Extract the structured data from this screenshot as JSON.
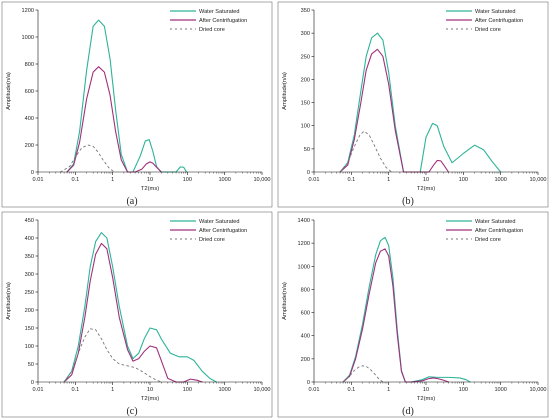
{
  "legend": {
    "water_saturated": "Water Saturated",
    "after_centrifugation": "After Centrifugation",
    "dried_core": "Dried core"
  },
  "colors": {
    "water_saturated": "#2eb399",
    "after_centrifugation": "#a0307c",
    "dried_core": "#777777"
  },
  "chart_data": [
    {
      "type": "line",
      "panel_label": "(a)",
      "ylabel": "Amplitude(n/a)",
      "xlabel": "T2(ms)",
      "xscale": "log",
      "xlim": [
        0.01,
        10000
      ],
      "ylim": [
        0,
        1200
      ],
      "xtick_labels": [
        "0.01",
        "0.1",
        "1",
        "10",
        "100",
        "1000",
        "10,000"
      ],
      "yticks": [
        0,
        200,
        400,
        600,
        800,
        1000,
        1200
      ],
      "series": [
        {
          "name": "Water Saturated",
          "x": [
            0.06,
            0.09,
            0.13,
            0.2,
            0.3,
            0.42,
            0.6,
            0.85,
            1.2,
            1.7,
            2.5,
            3.5,
            5.5,
            7.5,
            9.5,
            12,
            15,
            20,
            50,
            65,
            80,
            95
          ],
          "y": [
            0,
            60,
            300,
            750,
            1080,
            1125,
            1080,
            840,
            460,
            130,
            0,
            0,
            120,
            230,
            240,
            150,
            40,
            0,
            0,
            38,
            35,
            0
          ]
        },
        {
          "name": "After Centrifugation",
          "x": [
            0.06,
            0.09,
            0.13,
            0.2,
            0.3,
            0.42,
            0.6,
            0.85,
            1.2,
            1.7,
            2.5,
            4,
            6,
            8,
            10,
            12,
            15,
            20
          ],
          "y": [
            0,
            50,
            220,
            540,
            740,
            780,
            740,
            570,
            300,
            90,
            0,
            0,
            20,
            60,
            75,
            65,
            35,
            0
          ]
        },
        {
          "name": "Dried core",
          "x": [
            0.04,
            0.07,
            0.1,
            0.15,
            0.22,
            0.3,
            0.4,
            0.55,
            0.8,
            1.1
          ],
          "y": [
            0,
            40,
            110,
            180,
            200,
            190,
            150,
            90,
            30,
            0
          ]
        }
      ]
    },
    {
      "type": "line",
      "panel_label": "(b)",
      "ylabel": "Amplitude(n/a)",
      "xlabel": "T2(ms)",
      "xscale": "log",
      "xlim": [
        0.01,
        10000
      ],
      "ylim": [
        0,
        350
      ],
      "xtick_labels": [
        "0.01",
        "0.1",
        "1",
        "10",
        "100",
        "1000",
        "10,000"
      ],
      "yticks": [
        0,
        50,
        100,
        150,
        200,
        250,
        300,
        350
      ],
      "series": [
        {
          "name": "Water Saturated",
          "x": [
            0.05,
            0.08,
            0.12,
            0.18,
            0.25,
            0.35,
            0.5,
            0.7,
            1.0,
            1.5,
            2.5,
            3.5,
            7,
            10,
            15,
            20,
            30,
            50,
            100,
            200,
            350,
            600,
            1000
          ],
          "y": [
            0,
            20,
            80,
            175,
            250,
            290,
            300,
            285,
            215,
            100,
            0,
            0,
            0,
            75,
            105,
            100,
            55,
            20,
            40,
            58,
            48,
            22,
            0
          ]
        },
        {
          "name": "After Centrifugation",
          "x": [
            0.05,
            0.08,
            0.12,
            0.18,
            0.25,
            0.35,
            0.5,
            0.7,
            1.0,
            1.5,
            2.5,
            3.5,
            12,
            16,
            20,
            25,
            30,
            40
          ],
          "y": [
            0,
            15,
            70,
            150,
            220,
            255,
            265,
            250,
            190,
            90,
            0,
            0,
            0,
            15,
            25,
            24,
            15,
            0
          ]
        },
        {
          "name": "Dried core",
          "x": [
            0.05,
            0.08,
            0.12,
            0.17,
            0.22,
            0.3,
            0.4,
            0.6,
            0.85,
            1.2
          ],
          "y": [
            0,
            20,
            55,
            80,
            88,
            80,
            60,
            30,
            10,
            0
          ]
        }
      ]
    },
    {
      "type": "line",
      "panel_label": "(c)",
      "ylabel": "Amplitude(n/a)",
      "xlabel": "T2(ms)",
      "xscale": "log",
      "xlim": [
        0.01,
        10000
      ],
      "ylim": [
        0,
        450
      ],
      "xtick_labels": [
        "0.01",
        "0.1",
        "1",
        "10",
        "100",
        "1000",
        "10,000"
      ],
      "yticks": [
        0,
        50,
        100,
        150,
        200,
        250,
        300,
        350,
        400,
        450
      ],
      "series": [
        {
          "name": "Water Saturated",
          "x": [
            0.05,
            0.08,
            0.12,
            0.18,
            0.25,
            0.35,
            0.5,
            0.7,
            1.0,
            1.5,
            2.5,
            3.5,
            5,
            7,
            10,
            15,
            20,
            35,
            60,
            100,
            150,
            250,
            400,
            600
          ],
          "y": [
            0,
            30,
            100,
            210,
            320,
            390,
            415,
            400,
            320,
            210,
            100,
            65,
            80,
            120,
            150,
            145,
            120,
            80,
            70,
            70,
            60,
            30,
            10,
            0
          ]
        },
        {
          "name": "After Centrifugation",
          "x": [
            0.05,
            0.08,
            0.12,
            0.18,
            0.25,
            0.35,
            0.5,
            0.7,
            1.0,
            1.5,
            2.5,
            3.5,
            5,
            7,
            10,
            15,
            20,
            30,
            50,
            80,
            120,
            180,
            250
          ],
          "y": [
            0,
            20,
            80,
            180,
            280,
            355,
            385,
            370,
            290,
            180,
            90,
            58,
            65,
            85,
            100,
            95,
            60,
            10,
            0,
            0,
            8,
            5,
            0
          ]
        },
        {
          "name": "Dried core",
          "x": [
            0.05,
            0.08,
            0.12,
            0.18,
            0.25,
            0.35,
            0.5,
            0.7,
            1.0,
            1.5,
            2.5,
            4,
            6,
            10,
            15,
            20
          ],
          "y": [
            0,
            30,
            80,
            125,
            148,
            145,
            120,
            90,
            65,
            50,
            45,
            40,
            30,
            15,
            5,
            0
          ]
        }
      ]
    },
    {
      "type": "line",
      "panel_label": "(d)",
      "ylabel": "Amplitude(n/a)",
      "xlabel": "T2(ms)",
      "xscale": "log",
      "xlim": [
        0.01,
        10000
      ],
      "ylim": [
        0,
        1400
      ],
      "xtick_labels": [
        "0.01",
        "0.1",
        "1",
        "10",
        "100",
        "1000",
        "10,000"
      ],
      "yticks": [
        0,
        200,
        400,
        600,
        800,
        1000,
        1200,
        1400
      ],
      "series": [
        {
          "name": "Water Saturated",
          "x": [
            0.06,
            0.09,
            0.13,
            0.2,
            0.3,
            0.45,
            0.6,
            0.8,
            1.0,
            1.3,
            1.7,
            2.2,
            2.8,
            4,
            8,
            12,
            20,
            40,
            80,
            120,
            150
          ],
          "y": [
            0,
            60,
            220,
            500,
            820,
            1100,
            1220,
            1250,
            1180,
            900,
            450,
            100,
            0,
            0,
            20,
            45,
            40,
            40,
            35,
            20,
            0
          ]
        },
        {
          "name": "After Centrifugation",
          "x": [
            0.06,
            0.09,
            0.13,
            0.2,
            0.3,
            0.45,
            0.6,
            0.8,
            1.0,
            1.3,
            1.7,
            2.2,
            2.8,
            4,
            8,
            12,
            16,
            20,
            30,
            40
          ],
          "y": [
            0,
            50,
            200,
            460,
            760,
            1030,
            1130,
            1150,
            1090,
            830,
            410,
            90,
            0,
            0,
            10,
            30,
            35,
            30,
            15,
            0
          ]
        },
        {
          "name": "Dried core",
          "x": [
            0.06,
            0.09,
            0.12,
            0.16,
            0.2,
            0.25,
            0.32,
            0.42,
            0.55,
            0.7
          ],
          "y": [
            0,
            50,
            100,
            130,
            140,
            135,
            110,
            70,
            25,
            0
          ]
        }
      ]
    }
  ]
}
